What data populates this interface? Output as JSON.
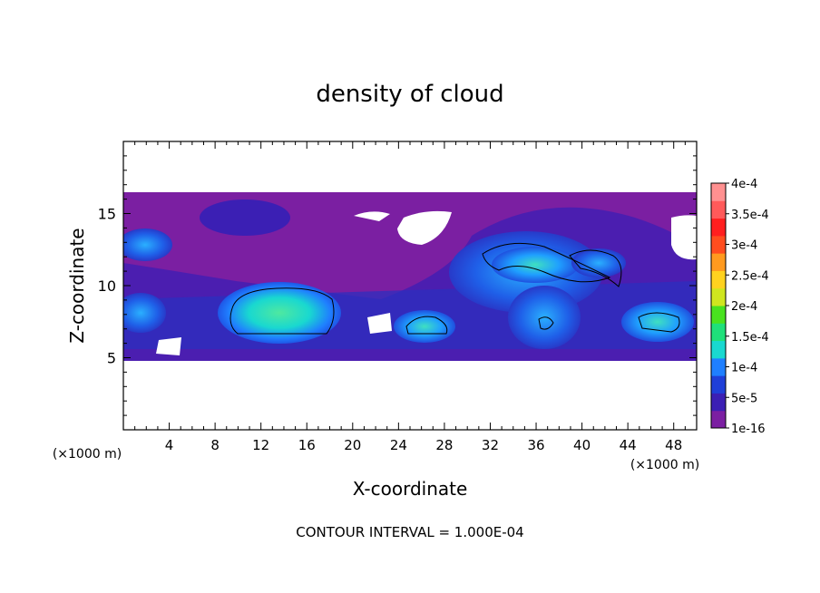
{
  "chart_data": {
    "type": "heatmap",
    "title": "density of cloud",
    "xlabel": "X-coordinate",
    "ylabel": "Z-coordinate",
    "x_unit": "(×1000 m)",
    "z_unit": "(×1000 m)",
    "xlim": [
      0,
      50
    ],
    "ylim": [
      0,
      20
    ],
    "x_ticks": [
      4,
      8,
      12,
      16,
      20,
      24,
      28,
      32,
      36,
      40,
      44,
      48
    ],
    "y_ticks": [
      5,
      10,
      15
    ],
    "footer": "CONTOUR INTERVAL = 1.000E-04",
    "contour_interval": 0.0001,
    "colorbar": {
      "labels": [
        "1e-16",
        "5e-5",
        "1e-4",
        "1.5e-4",
        "2e-4",
        "2.5e-4",
        "3e-4",
        "3.5e-4",
        "4e-4"
      ],
      "values": [
        1e-16,
        5e-05,
        0.0001,
        0.00015,
        0.0002,
        0.00025,
        0.0003,
        0.00035,
        0.0004
      ],
      "colors": [
        "#7b1fa2",
        "#3b1fb4",
        "#1f3fd8",
        "#1f7fff",
        "#19d8d0",
        "#1fe07a",
        "#49e21f",
        "#cfe61f",
        "#ffd21f",
        "#ff9a1f",
        "#ff4d1f",
        "#ff1f1f",
        "#ff5a5a",
        "#ff9090"
      ]
    },
    "grid": false,
    "legend_position": "right"
  }
}
